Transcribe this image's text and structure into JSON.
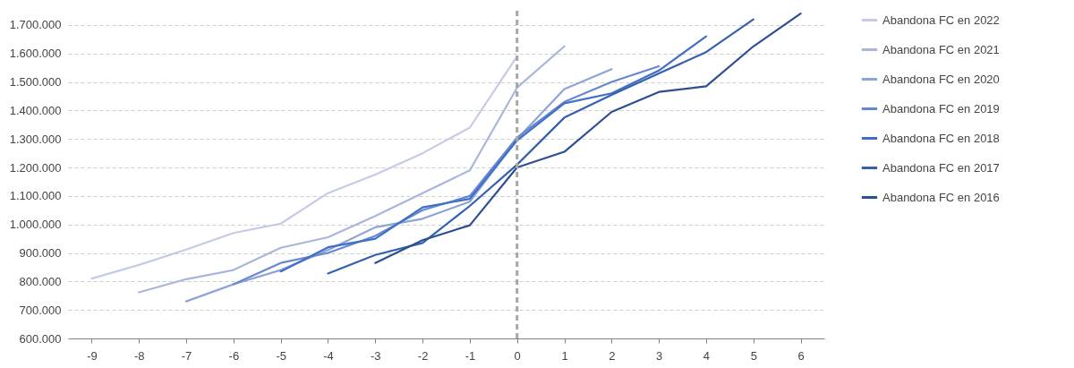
{
  "chart_data": {
    "type": "line",
    "xlim": [
      -9.5,
      6.5
    ],
    "xticks": [
      -9,
      -8,
      -7,
      -6,
      -5,
      -4,
      -3,
      -2,
      -1,
      0,
      1,
      2,
      3,
      4,
      5,
      6
    ],
    "ylim": [
      600000,
      1750000
    ],
    "yticks": [
      {
        "value": 600000,
        "label": "600.000"
      },
      {
        "value": 700000,
        "label": "700.000"
      },
      {
        "value": 800000,
        "label": "800.000"
      },
      {
        "value": 900000,
        "label": "900.000"
      },
      {
        "value": 1000000,
        "label": "1.000.000"
      },
      {
        "value": 1100000,
        "label": "1.100.000"
      },
      {
        "value": 1200000,
        "label": "1.200.000"
      },
      {
        "value": 1300000,
        "label": "1.300.000"
      },
      {
        "value": 1400000,
        "label": "1.400.000"
      },
      {
        "value": 1500000,
        "label": "1.500.000"
      },
      {
        "value": 1600000,
        "label": "1.600.000"
      },
      {
        "value": 1700000,
        "label": "1.700.000"
      }
    ],
    "grid": "y",
    "legend": "right",
    "line_style": "solid",
    "ref_lines": [
      {
        "axis": "x",
        "value": 0,
        "color": "#a6a6a6",
        "line_style": "dashed"
      }
    ],
    "series": [
      {
        "name": "Abandona FC en 2022",
        "color": "#c5cbe6",
        "x": [
          -9,
          -8,
          -7,
          -6,
          -5,
          -4,
          -3,
          -2,
          -1,
          0
        ],
        "values": [
          810000,
          858000,
          912000,
          970000,
          1003000,
          1110000,
          1175000,
          1250000,
          1340000,
          1590000
        ]
      },
      {
        "name": "Abandona FC en 2021",
        "color": "#a9b5dc",
        "x": [
          -8,
          -7,
          -6,
          -5,
          -4,
          -3,
          -2,
          -1,
          0,
          1
        ],
        "values": [
          762000,
          808000,
          840000,
          918000,
          955000,
          1030000,
          1110000,
          1190000,
          1480000,
          1625000
        ]
      },
      {
        "name": "Abandona FC en 2020",
        "color": "#8ea3d8",
        "x": [
          -7,
          -6,
          -5,
          -4,
          -3,
          -2,
          -1,
          0,
          1,
          2
        ],
        "values": [
          730000,
          790000,
          840000,
          910000,
          990000,
          1020000,
          1080000,
          1300000,
          1475000,
          1545000
        ]
      },
      {
        "name": "Abandona FC en 2019",
        "color": "#6688d0",
        "x": [
          -6,
          -5,
          -4,
          -3,
          -2,
          -1,
          0,
          1,
          2,
          3
        ],
        "values": [
          790000,
          865000,
          900000,
          960000,
          1050000,
          1100000,
          1305000,
          1430000,
          1500000,
          1555000
        ]
      },
      {
        "name": "Abandona FC en 2018",
        "color": "#3f6fc4",
        "x": [
          -5,
          -4,
          -3,
          -2,
          -1,
          0,
          1,
          2,
          3,
          4
        ],
        "values": [
          835000,
          920000,
          950000,
          1060000,
          1090000,
          1295000,
          1425000,
          1460000,
          1540000,
          1660000
        ]
      },
      {
        "name": "Abandona FC en 2017",
        "color": "#3560ad",
        "x": [
          -4,
          -3,
          -2,
          -1,
          0,
          1,
          2,
          3,
          4,
          5
        ],
        "values": [
          828000,
          893000,
          935000,
          1065000,
          1210000,
          1375000,
          1455000,
          1530000,
          1605000,
          1720000
        ]
      },
      {
        "name": "Abandona FC en 2016",
        "color": "#2c4f94",
        "x": [
          -3,
          -2,
          -1,
          0,
          1,
          2,
          3,
          4,
          5,
          6
        ],
        "values": [
          865000,
          945000,
          997000,
          1200000,
          1255000,
          1395000,
          1465000,
          1485000,
          1625000,
          1740000
        ]
      }
    ]
  }
}
